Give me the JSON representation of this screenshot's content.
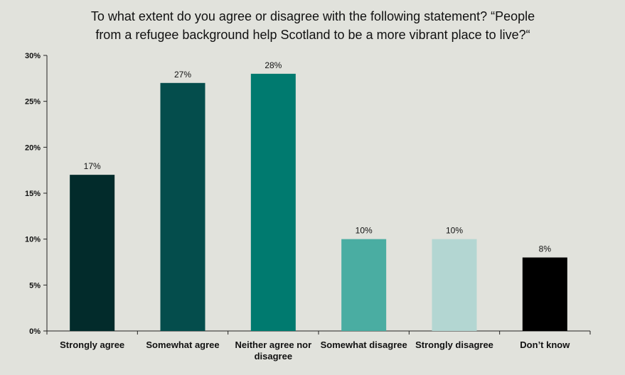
{
  "chart_data": {
    "type": "bar",
    "title_lines": [
      "To what extent do you agree or disagree with the following statement? “People",
      "from a refugee background help Scotland to be a more vibrant place to live?“"
    ],
    "categories": [
      [
        "Strongly agree"
      ],
      [
        "Somewhat agree"
      ],
      [
        "Neither agree nor",
        "disagree"
      ],
      [
        "Somewhat disagree"
      ],
      [
        "Strongly disagree"
      ],
      [
        "Don’t know"
      ]
    ],
    "values": [
      17,
      27,
      28,
      10,
      10,
      8
    ],
    "value_labels": [
      "17%",
      "27%",
      "28%",
      "10%",
      "10%",
      "8%"
    ],
    "colors": [
      "#022b2b",
      "#044d4c",
      "#007a6f",
      "#4aada2",
      "#b3d6d2",
      "#000000"
    ],
    "ylim": [
      0,
      30
    ],
    "yticks": [
      0,
      5,
      10,
      15,
      20,
      25,
      30
    ],
    "ytick_labels": [
      "0%",
      "5%",
      "10%",
      "15%",
      "20%",
      "25%",
      "30%"
    ],
    "grid": false,
    "xlabel": "",
    "ylabel": ""
  }
}
